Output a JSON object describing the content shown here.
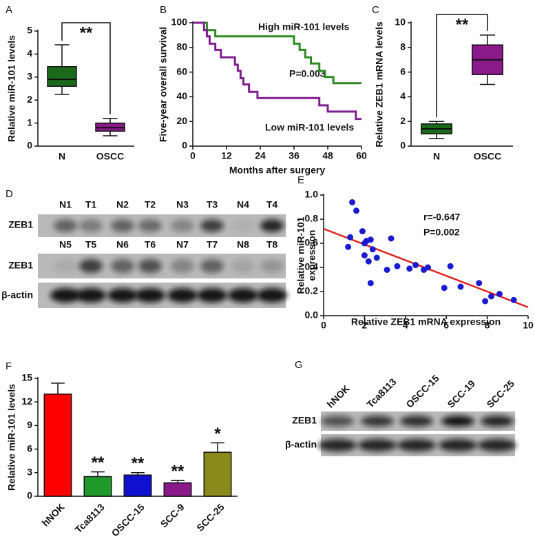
{
  "chart_data": [
    {
      "type": "box",
      "panel": "A",
      "ylabel": "Relative miR-101 levels",
      "categories": [
        "N",
        "OSCC"
      ],
      "colors": [
        "#1b6a1b",
        "#8a1a8a"
      ],
      "whisker_low": [
        2.25,
        0.45
      ],
      "q1": [
        2.6,
        0.65
      ],
      "median": [
        2.9,
        0.8
      ],
      "q3": [
        3.45,
        1.0
      ],
      "whisker_high": [
        4.4,
        1.2
      ],
      "ylim": [
        0,
        5
      ],
      "yticks": [
        0,
        1,
        2,
        3,
        4,
        5
      ],
      "significance": "**"
    },
    {
      "type": "line",
      "step": true,
      "panel": "B",
      "xlabel": "Months after surgery",
      "ylabel": "Five-year overall survival",
      "xlim": [
        0,
        60
      ],
      "xticks": [
        0,
        12,
        24,
        36,
        48,
        60
      ],
      "ylim": [
        0,
        100
      ],
      "yticks": [
        0,
        20,
        40,
        60,
        80,
        100
      ],
      "series": [
        {
          "name": "High miR-101 levels",
          "color": "#2e8b22",
          "x": [
            0,
            5,
            8,
            36,
            38,
            40,
            42,
            45,
            47,
            50,
            60
          ],
          "values": [
            100,
            94,
            89,
            83,
            78,
            72,
            67,
            61,
            56,
            51,
            51
          ]
        },
        {
          "name": "Low miR-101 levels",
          "color": "#7f1f8f",
          "x": [
            0,
            4,
            5,
            6,
            8,
            10,
            15,
            16,
            17,
            18,
            20,
            23,
            45,
            48,
            58,
            60
          ],
          "values": [
            100,
            94,
            89,
            83,
            78,
            72,
            66,
            61,
            55,
            50,
            44,
            39,
            33,
            28,
            22,
            22
          ]
        }
      ],
      "annotations": [
        "P=0.003"
      ]
    },
    {
      "type": "box",
      "panel": "C",
      "ylabel": "Relative ZEB1 mRNA levels",
      "categories": [
        "N",
        "OSCC"
      ],
      "colors": [
        "#1b6a1b",
        "#8a1a8a"
      ],
      "whisker_low": [
        0.6,
        5.0
      ],
      "q1": [
        1.0,
        5.8
      ],
      "median": [
        1.4,
        7.0
      ],
      "q3": [
        1.8,
        8.2
      ],
      "whisker_high": [
        2.0,
        9.0
      ],
      "ylim": [
        0,
        10
      ],
      "yticks": [
        0,
        2,
        4,
        6,
        8,
        10
      ],
      "significance": "**"
    },
    {
      "type": "scatter",
      "panel": "E",
      "xlabel": "Relative ZEB1 mRNA expression",
      "ylabel": [
        "Relative miR-101",
        "expression"
      ],
      "xlim": [
        0,
        10
      ],
      "xticks": [
        0,
        2,
        4,
        6,
        8,
        10
      ],
      "ylim": [
        0,
        1
      ],
      "yticks": [
        {
          "value": 0,
          "label": "0.0"
        },
        0.2,
        0.4,
        0.6,
        0.8,
        {
          "value": 1,
          "label": "1.0"
        }
      ],
      "color": "#1a1ad0",
      "x": [
        1.4,
        1.6,
        1.3,
        1.2,
        1.9,
        2.0,
        2.1,
        2.2,
        2.3,
        2.4,
        2.0,
        2.6,
        2.3,
        3.3,
        3.1,
        3.6,
        4.2,
        4.5,
        4.9,
        5.1,
        5.9,
        6.2,
        6.7,
        7.6,
        7.9,
        8.2,
        8.6,
        9.3
      ],
      "values": [
        0.94,
        0.87,
        0.65,
        0.57,
        0.7,
        0.6,
        0.62,
        0.45,
        0.63,
        0.55,
        0.5,
        0.48,
        0.27,
        0.64,
        0.38,
        0.41,
        0.39,
        0.42,
        0.38,
        0.4,
        0.23,
        0.41,
        0.24,
        0.27,
        0.12,
        0.16,
        0.18,
        0.13
      ],
      "fit": {
        "color": "#e0201b",
        "x": [
          0,
          10
        ],
        "values": [
          0.72,
          0.07
        ]
      },
      "annotations": [
        "r=-0.647",
        "P=0.002"
      ]
    },
    {
      "type": "bar",
      "panel": "F",
      "ylabel": "Relative miR-101 levels",
      "categories": [
        "hNOK",
        "Tca8113",
        "OSCC-15",
        "SCC-9",
        "SCC-25"
      ],
      "values": [
        13.0,
        2.5,
        2.7,
        1.7,
        5.6
      ],
      "errors": [
        1.4,
        0.6,
        0.3,
        0.3,
        1.2
      ],
      "colors": [
        "#ff0000",
        "#1f9a2a",
        "#1010d0",
        "#8a1a8a",
        "#8a8a1a"
      ],
      "ylim": [
        0,
        15
      ],
      "yticks": [
        0,
        3,
        6,
        9,
        12,
        15
      ],
      "significance": [
        null,
        "**",
        "**",
        "**",
        "*"
      ]
    }
  ],
  "blots": [
    {
      "panel": "D",
      "lane_rows": [
        [
          "N1",
          "T1",
          "N2",
          "T2",
          "N3",
          "T3",
          "N4",
          "T4"
        ],
        [
          "N5",
          "T5",
          "N6",
          "T6",
          "N7",
          "T7",
          "N8",
          "T8"
        ]
      ],
      "row_labels": [
        "ZEB1",
        "ZEB1",
        "β-actin"
      ]
    },
    {
      "panel": "G",
      "lanes": [
        "hNOK",
        "Tca8113",
        "OSCC-15",
        "SCC-19",
        "SCC-25"
      ],
      "row_labels": [
        "ZEB1",
        "β-actin"
      ]
    }
  ]
}
